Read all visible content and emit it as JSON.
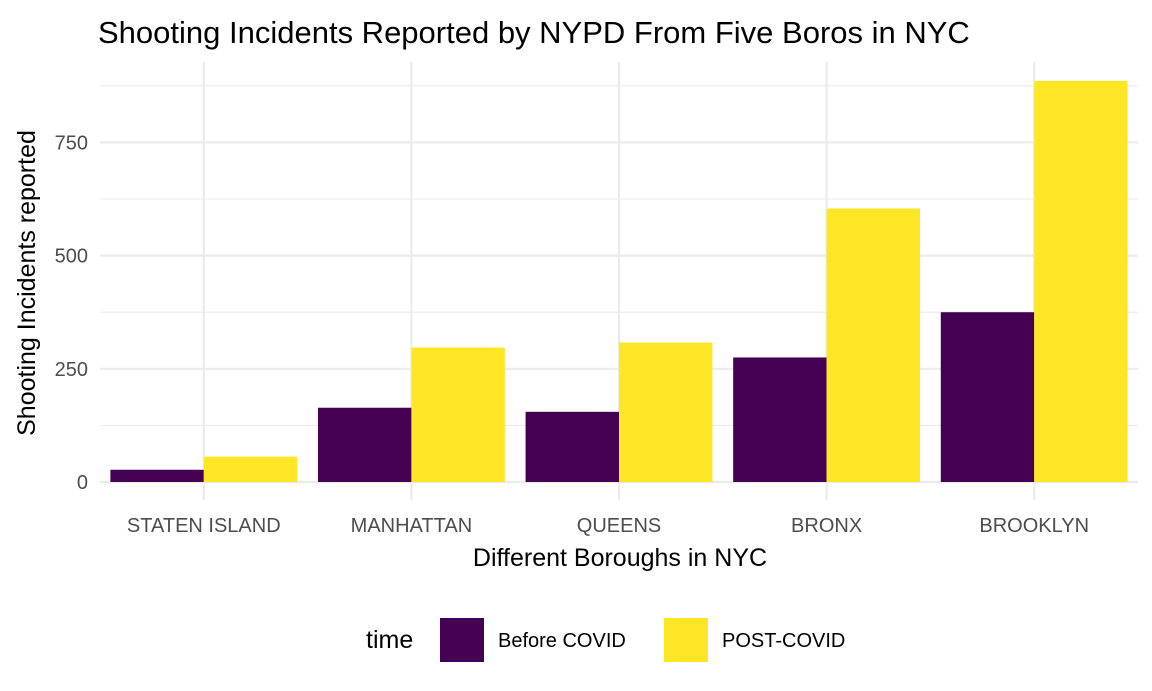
{
  "chart_data": {
    "type": "bar",
    "title": "Shooting Incidents Reported by NYPD From Five Boros in NYC",
    "xlabel": "Different Boroughs in NYC",
    "ylabel": "Shooting Incidents reported",
    "categories": [
      "STATEN ISLAND",
      "MANHATTAN",
      "QUEENS",
      "BRONX",
      "BROOKLYN"
    ],
    "series": [
      {
        "name": "Before COVID",
        "values": [
          27,
          164,
          155,
          275,
          375
        ],
        "color": "#440154"
      },
      {
        "name": "POST-COVID",
        "values": [
          56,
          297,
          308,
          604,
          886
        ],
        "color": "#fde725"
      }
    ],
    "ylim": [
      0,
      920
    ],
    "yticks": [
      0,
      250,
      500,
      750
    ],
    "grid": true,
    "legend": {
      "title": "time",
      "position": "bottom"
    }
  }
}
